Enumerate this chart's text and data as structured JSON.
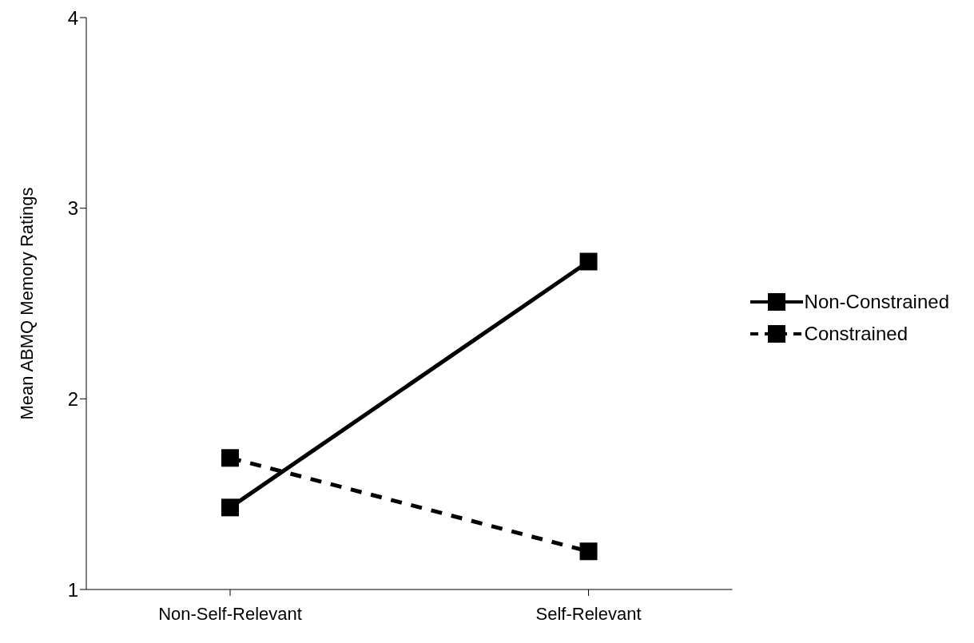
{
  "chart_data": {
    "type": "line",
    "ylabel": "Mean ABMQ Memory Ratings",
    "categories": [
      "Non-Self-Relevant",
      "Self-Relevant"
    ],
    "series": [
      {
        "name": "Non-Constrained",
        "color": "#000000",
        "values": [
          1.43,
          2.72
        ],
        "line_style": "solid"
      },
      {
        "name": "Constrained",
        "color": "#000000",
        "values": [
          1.69,
          1.2
        ],
        "line_style": "dashed"
      }
    ],
    "ylim": [
      1,
      4
    ],
    "yticks": [
      1,
      2,
      3,
      4
    ],
    "grid": false,
    "legend": "right",
    "marker": "square"
  }
}
